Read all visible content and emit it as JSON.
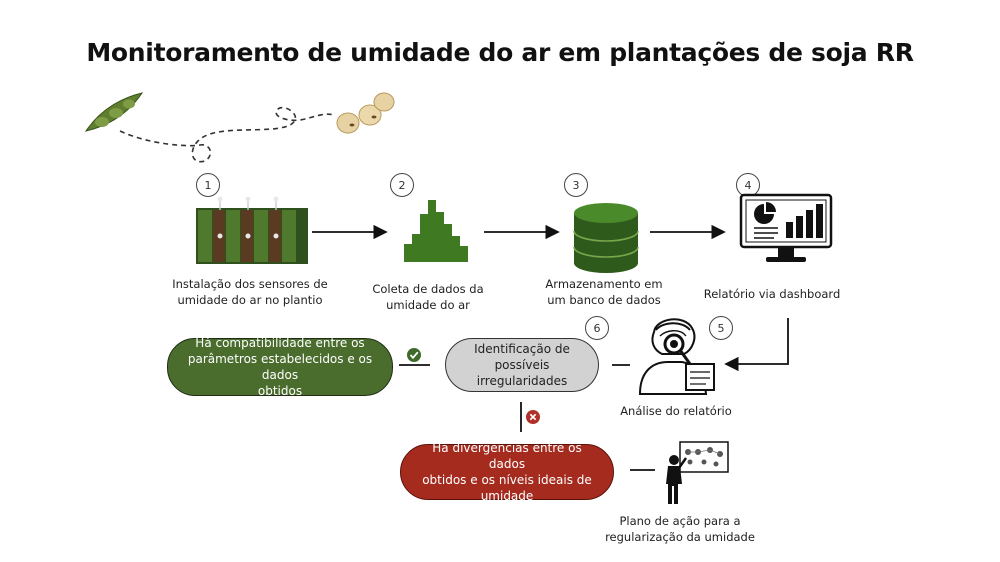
{
  "title": "Monitoramento de umidade do ar em plantações de soja RR",
  "steps": [
    {
      "number": "1",
      "label_line1": "Instalação dos sensores de",
      "label_line2": "umidade do ar no plantio"
    },
    {
      "number": "2",
      "label_line1": "Coleta de dados da",
      "label_line2": "umidade do ar"
    },
    {
      "number": "3",
      "label_line1": "Armazenamento em",
      "label_line2": "um banco de dados"
    },
    {
      "number": "4",
      "label_line1": "Relatório via dashboard"
    },
    {
      "number": "5",
      "label_line1": "Análise do relatório"
    },
    {
      "number": "6",
      "label_line1": "Identificação de possíveis",
      "label_line2": "irregularidades"
    }
  ],
  "outcomes": {
    "compatible": {
      "line1": "Há compatibilidade entre os",
      "line2": "parâmetros estabelecidos e os dados",
      "line3": "obtidos"
    },
    "divergent": {
      "line1": "Há divergências entre os dados",
      "line2": "obtidos e os níveis ideais de",
      "line3": "umidade"
    }
  },
  "action_plan": {
    "line1": "Plano de ação para a",
    "line2": "regularização da umidade"
  },
  "colors": {
    "green": "#4a6d2e",
    "red": "#a62b1f",
    "gray": "#d2d2d2",
    "check": "#3f6a2a",
    "cross": "#b0302a"
  },
  "icons": [
    "soy-pod-icon",
    "soybeans-icon",
    "sensor-field-icon",
    "bar-histogram-icon",
    "database-icon",
    "dashboard-monitor-icon",
    "analyst-magnifier-icon",
    "presenter-board-icon",
    "check-icon",
    "cross-icon"
  ]
}
